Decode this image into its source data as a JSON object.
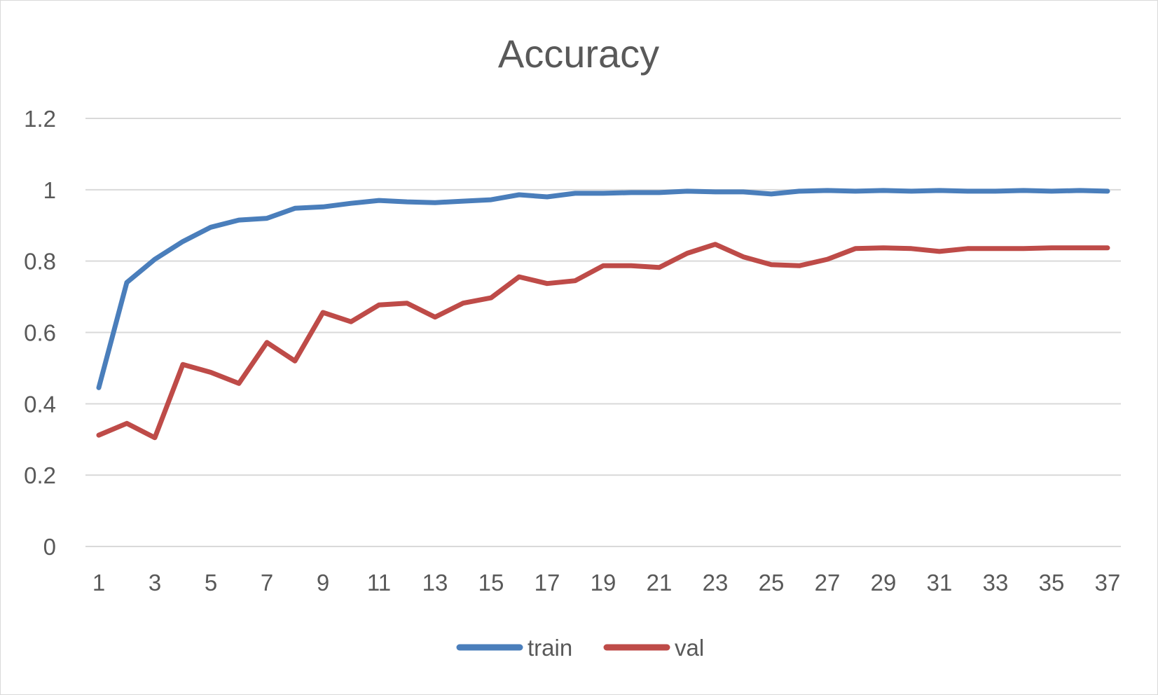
{
  "chart_data": {
    "type": "line",
    "title": "Accuracy",
    "xlabel": "",
    "ylabel": "",
    "x": [
      1,
      2,
      3,
      4,
      5,
      6,
      7,
      8,
      9,
      10,
      11,
      12,
      13,
      14,
      15,
      16,
      17,
      18,
      19,
      20,
      21,
      22,
      23,
      24,
      25,
      26,
      27,
      28,
      29,
      30,
      31,
      32,
      33,
      34,
      35,
      36,
      37
    ],
    "x_tick_labels": [
      "1",
      "3",
      "5",
      "7",
      "9",
      "11",
      "13",
      "15",
      "17",
      "19",
      "21",
      "23",
      "25",
      "27",
      "29",
      "31",
      "33",
      "35",
      "37"
    ],
    "y_tick_labels": [
      "0",
      "0.2",
      "0.4",
      "0.6",
      "0.8",
      "1",
      "1.2"
    ],
    "ylim": [
      0,
      1.2
    ],
    "grid": true,
    "legend_position": "bottom",
    "series": [
      {
        "name": "train",
        "color": "#4a7ebb",
        "values": [
          0.445,
          0.74,
          0.805,
          0.855,
          0.895,
          0.915,
          0.92,
          0.948,
          0.952,
          0.962,
          0.97,
          0.966,
          0.964,
          0.968,
          0.972,
          0.986,
          0.98,
          0.99,
          0.99,
          0.992,
          0.992,
          0.996,
          0.994,
          0.994,
          0.988,
          0.996,
          0.998,
          0.996,
          0.998,
          0.996,
          0.998,
          0.996,
          0.996,
          0.998,
          0.996,
          0.998,
          0.996
        ]
      },
      {
        "name": "val",
        "color": "#be4b48",
        "values": [
          0.312,
          0.345,
          0.305,
          0.51,
          0.488,
          0.457,
          0.572,
          0.52,
          0.656,
          0.63,
          0.677,
          0.682,
          0.643,
          0.682,
          0.697,
          0.756,
          0.737,
          0.745,
          0.787,
          0.787,
          0.782,
          0.822,
          0.847,
          0.812,
          0.79,
          0.787,
          0.805,
          0.835,
          0.837,
          0.835,
          0.827,
          0.835,
          0.835,
          0.835,
          0.837,
          0.837,
          0.837
        ]
      }
    ]
  }
}
